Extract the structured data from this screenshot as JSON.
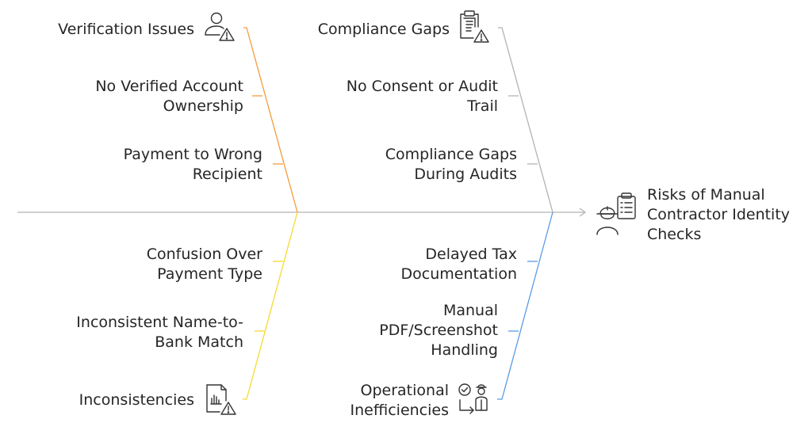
{
  "effect": {
    "lines": [
      "Risks of Manual",
      "Contractor Identity",
      "Checks"
    ],
    "icon": "contractor-clipboard-icon"
  },
  "categories": [
    {
      "title": "Verification Issues",
      "icon": "user-warning-icon",
      "color": "#F59B3C",
      "causes": [
        {
          "lines": [
            "No Verified Account",
            "Ownership"
          ]
        },
        {
          "lines": [
            "Payment to Wrong",
            "Recipient"
          ]
        }
      ]
    },
    {
      "title": "Compliance Gaps",
      "icon": "clipboard-warning-icon",
      "color": "#B3B3B3",
      "causes": [
        {
          "lines": [
            "No Consent or Audit",
            "Trail"
          ]
        },
        {
          "lines": [
            "Compliance Gaps",
            "During Audits"
          ]
        }
      ]
    },
    {
      "title": "Inconsistencies",
      "icon": "report-warning-icon",
      "color": "#F7DA2E",
      "causes": [
        {
          "lines": [
            "Confusion Over",
            "Payment Type"
          ]
        },
        {
          "lines": [
            "Inconsistent Name-to-",
            "Bank Match"
          ]
        }
      ]
    },
    {
      "title_lines": [
        "Operational",
        "Inefficiencies"
      ],
      "icon": "workflow-person-icon",
      "color": "#5B9BE6",
      "causes": [
        {
          "lines": [
            "Delayed Tax",
            "Documentation"
          ]
        },
        {
          "lines": [
            "Manual",
            "PDF/Screenshot",
            "Handling"
          ]
        }
      ]
    }
  ],
  "colors": {
    "spine": "#B3B3B3",
    "text": "#262626",
    "icon": "#333333"
  }
}
